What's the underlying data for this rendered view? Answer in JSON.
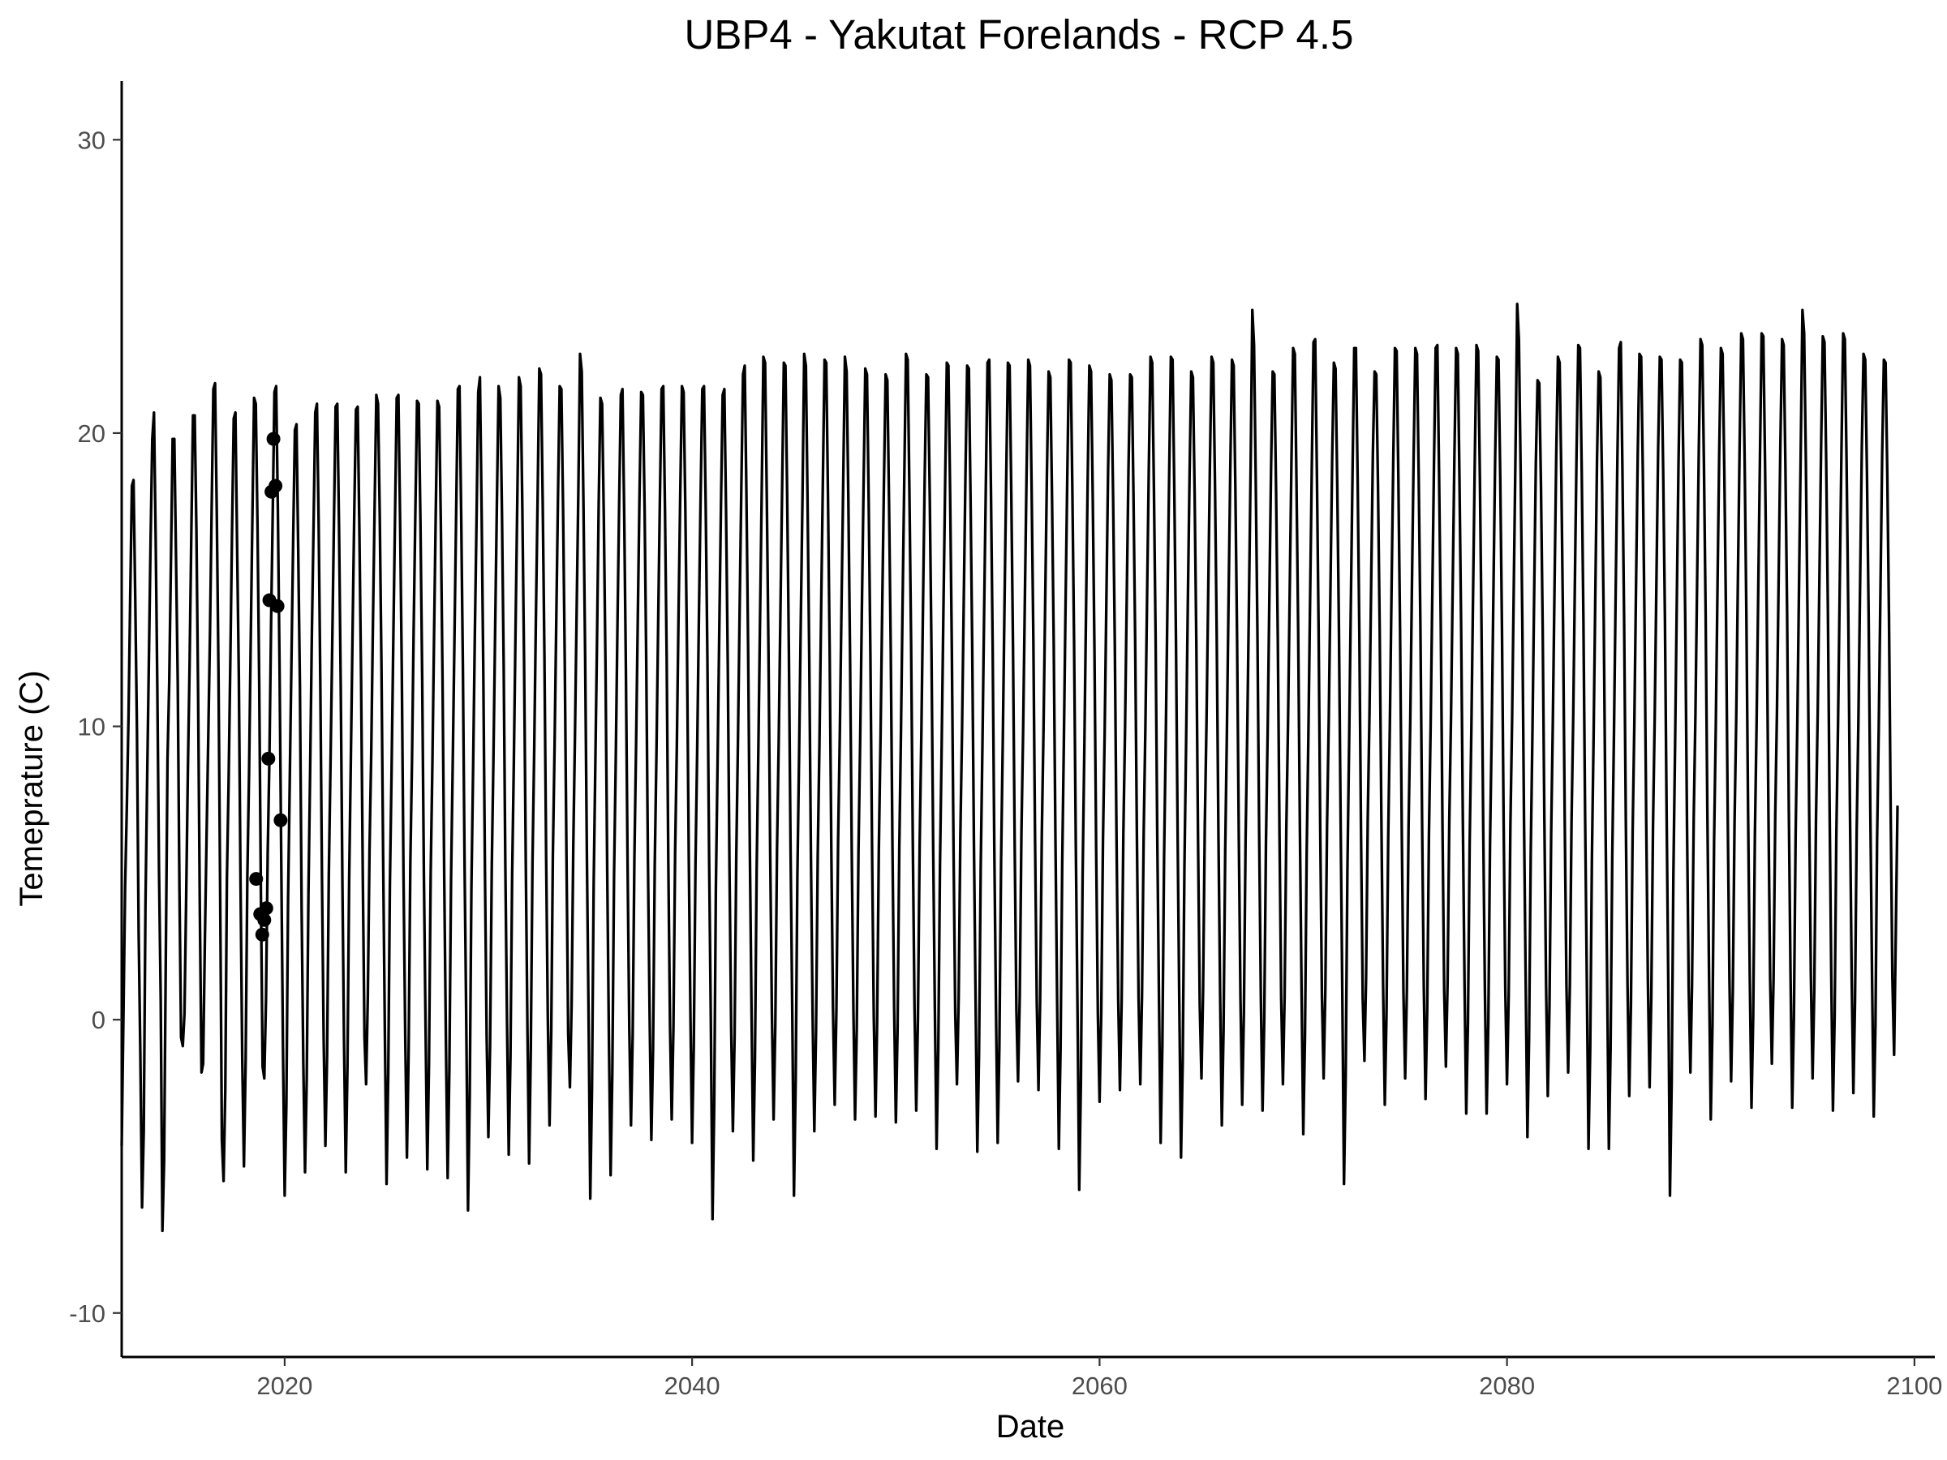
{
  "chart_data": {
    "type": "line",
    "title": "UBP4 - Yakutat Forelands - RCP 4.5",
    "xlabel": "Date",
    "ylabel": "Temeprature (C)",
    "x_range": [
      2012,
      2101
    ],
    "ylim": [
      -11.5,
      32
    ],
    "x_ticks": [
      2020,
      2040,
      2060,
      2080,
      2100
    ],
    "y_ticks": [
      -10,
      0,
      10,
      20,
      30
    ],
    "grid": false,
    "legend": "none",
    "colors": {
      "line": "#000000",
      "points": "#000000",
      "axis": "#000000",
      "tick_text": "#4d4d4d"
    },
    "series": [
      {
        "type": "line",
        "description_note": "",
        "values_note": "",
        "x_start": 2012,
        "step": 0.0833333333,
        "yearly_annual_cycle_approx": true,
        "y": [
          -4.3,
          0.0,
          4.5,
          7.2,
          10.3,
          14.4,
          18.2,
          18.4,
          14.4,
          9.9,
          3.0,
          -1.2,
          -6.4,
          -3.8,
          3.9,
          8.2,
          12.2,
          16.3,
          19.8,
          20.7,
          16.4,
          11.4,
          5.1,
          0.7,
          -7.2,
          -4.8,
          2.2,
          8.9,
          11.5,
          15.6,
          19.8,
          19.8,
          15.7,
          11.5,
          4.4,
          -0.6,
          -0.9,
          0.2,
          4.2,
          8.5,
          12.1,
          16.5,
          20.6,
          20.6,
          16.7,
          11.1,
          3.8,
          -1.8,
          -1.5,
          2.6,
          6.2,
          9.6,
          13.1,
          17.4,
          21.5,
          21.7,
          17.3,
          11.9,
          4.3,
          -4.1,
          -5.5,
          -2.4,
          4.8,
          8.1,
          12.2,
          16.6,
          20.5,
          20.7,
          16.1,
          11.7,
          4.6,
          -1.3,
          -5.0,
          -1.4,
          4.9,
          8.4,
          12.8,
          17.1,
          21.2,
          21.0,
          16.9,
          11.5,
          4.3,
          -1.6,
          -2.0,
          0.7,
          5.7,
          8.9,
          13.6,
          17.3,
          21.4,
          21.6,
          17.4,
          12.0,
          5.4,
          -0.9,
          -6.0,
          -2.9,
          4.1,
          8.2,
          12.3,
          16.4,
          20.1,
          20.3,
          16.0,
          11.4,
          3.8,
          -1.5,
          -5.2,
          -2.0,
          4.3,
          8.5,
          13.1,
          16.8,
          20.7,
          21.0,
          16.9,
          11.6,
          4.8,
          -0.7,
          -4.3,
          -1.2,
          4.9,
          8.7,
          12.7,
          16.9,
          20.9,
          21.0,
          16.8,
          11.4,
          4.6,
          -0.8,
          -5.2,
          -1.6,
          4.8,
          8.9,
          13.2,
          17.3,
          20.8,
          20.9,
          16.7,
          11.6,
          4.9,
          -0.6,
          -2.2,
          0.8,
          5.8,
          9.1,
          13.5,
          17.5,
          21.3,
          21.0,
          17.2,
          12.1,
          5.5,
          -0.4,
          -5.6,
          -1.8,
          4.6,
          8.5,
          12.9,
          17.1,
          21.2,
          21.3,
          17.0,
          11.8,
          4.9,
          -0.5,
          -4.7,
          -1.1,
          5.3,
          8.9,
          13.3,
          17.3,
          21.1,
          21.0,
          16.9,
          11.7,
          5.0,
          -0.3,
          -5.1,
          -1.5,
          5.0,
          8.7,
          13.2,
          17.2,
          21.1,
          20.9,
          16.9,
          11.6,
          4.8,
          -0.8,
          -5.4,
          -1.7,
          4.8,
          8.8,
          13.0,
          17.3,
          21.5,
          21.6,
          17.2,
          12.0,
          5.2,
          -0.2,
          -6.5,
          -2.6,
          4.5,
          8.6,
          13.1,
          17.0,
          21.4,
          21.9,
          17.3,
          12.0,
          5.0,
          -0.6,
          -4.0,
          -0.9,
          5.2,
          9.0,
          13.4,
          17.6,
          21.6,
          21.2,
          17.2,
          12.0,
          5.3,
          -0.1,
          -4.6,
          -1.3,
          4.9,
          8.8,
          13.3,
          17.6,
          21.9,
          21.6,
          17.4,
          12.2,
          5.4,
          -0.4,
          -4.9,
          -1.0,
          5.4,
          9.2,
          13.7,
          17.8,
          22.2,
          22.0,
          17.6,
          12.4,
          5.6,
          0.0,
          -3.6,
          -0.4,
          5.6,
          9.3,
          13.6,
          17.8,
          21.6,
          21.5,
          17.4,
          12.1,
          5.5,
          -0.5,
          -2.3,
          0.5,
          6.0,
          9.6,
          13.9,
          18.0,
          22.7,
          22.1,
          17.6,
          12.4,
          5.7,
          0.2,
          -6.1,
          -2.4,
          4.6,
          8.8,
          13.1,
          17.6,
          21.2,
          21.0,
          17.1,
          12.0,
          5.1,
          -0.7,
          -5.3,
          -1.8,
          4.9,
          8.8,
          13.4,
          17.6,
          21.3,
          21.5,
          17.3,
          12.0,
          5.3,
          -0.3,
          -3.6,
          -0.5,
          5.5,
          9.4,
          13.7,
          17.9,
          21.4,
          21.3,
          17.4,
          12.2,
          5.4,
          0.1,
          -4.1,
          -1.0,
          5.3,
          9.1,
          13.5,
          17.7,
          21.5,
          21.6,
          17.4,
          12.3,
          5.4,
          -0.2,
          -3.4,
          -0.3,
          5.7,
          9.3,
          13.8,
          17.9,
          21.6,
          21.4,
          17.4,
          12.4,
          5.6,
          0.1,
          -4.2,
          -0.9,
          5.3,
          9.2,
          13.7,
          17.8,
          21.5,
          21.6,
          17.5,
          12.3,
          5.5,
          0.0,
          -6.8,
          -2.9,
          4.4,
          8.7,
          13.2,
          17.5,
          21.3,
          21.5,
          17.3,
          12.1,
          5.2,
          -0.3,
          -3.8,
          -0.6,
          5.6,
          9.4,
          13.9,
          18.1,
          22.0,
          22.3,
          17.9,
          12.6,
          5.8,
          0.3,
          -4.8,
          -1.4,
          5.1,
          9.2,
          13.7,
          17.9,
          22.6,
          22.4,
          17.8,
          12.5,
          5.7,
          0.2,
          -3.4,
          -0.2,
          5.8,
          9.5,
          13.9,
          18.1,
          22.4,
          22.3,
          17.9,
          12.6,
          5.8,
          0.3,
          -6.0,
          -2.1,
          4.9,
          9.0,
          13.6,
          17.8,
          22.7,
          22.3,
          17.8,
          12.4,
          5.6,
          0.1,
          -3.8,
          -0.4,
          5.6,
          9.4,
          14.0,
          18.3,
          22.5,
          22.4,
          17.9,
          12.6,
          5.9,
          0.4,
          -2.9,
          0.3,
          6.1,
          9.7,
          14.1,
          18.3,
          22.6,
          22.1,
          17.8,
          12.5,
          5.8,
          0.3,
          -3.4,
          -0.3,
          5.7,
          9.5,
          14.0,
          18.2,
          22.2,
          22.0,
          17.7,
          12.5,
          5.7,
          0.1,
          -3.3,
          -0.1,
          5.8,
          9.6,
          14.1,
          18.3,
          22.0,
          21.8,
          17.6,
          12.6,
          5.9,
          0.4,
          -3.5,
          -0.3,
          5.8,
          9.6,
          14.2,
          18.5,
          22.7,
          22.5,
          18.0,
          12.8,
          6.0,
          0.4,
          -3.1,
          0.0,
          5.9,
          9.7,
          14.2,
          18.4,
          22.0,
          21.9,
          17.8,
          12.6,
          5.9,
          0.3,
          -4.4,
          -1.0,
          5.3,
          9.4,
          13.9,
          18.2,
          22.4,
          22.3,
          17.9,
          12.6,
          5.8,
          0.2,
          -2.2,
          0.7,
          6.3,
          9.9,
          14.3,
          18.6,
          22.3,
          22.2,
          17.9,
          12.8,
          6.1,
          0.6,
          -4.5,
          -1.2,
          5.2,
          9.3,
          13.9,
          18.2,
          22.4,
          22.5,
          18.1,
          12.8,
          6.0,
          0.4,
          -4.2,
          -0.9,
          5.4,
          9.5,
          14.1,
          18.4,
          22.4,
          22.3,
          17.9,
          12.7,
          5.9,
          0.3,
          -2.1,
          0.8,
          6.4,
          9.9,
          14.3,
          18.6,
          22.5,
          22.3,
          18.0,
          12.9,
          6.1,
          0.6,
          -2.4,
          0.6,
          6.3,
          9.9,
          14.3,
          18.6,
          22.1,
          21.9,
          17.8,
          12.8,
          6.2,
          0.6,
          -4.4,
          -1.0,
          5.4,
          9.5,
          14.2,
          18.5,
          22.5,
          22.4,
          18.0,
          12.8,
          6.0,
          0.4,
          -5.8,
          -2.1,
          4.9,
          9.2,
          13.9,
          18.3,
          22.3,
          22.1,
          17.8,
          12.6,
          5.8,
          0.2,
          -2.8,
          0.3,
          6.1,
          9.8,
          14.3,
          18.7,
          22.0,
          21.8,
          17.8,
          12.8,
          6.2,
          0.7,
          -2.4,
          0.6,
          6.3,
          9.9,
          14.4,
          18.7,
          22.0,
          21.9,
          17.9,
          12.9,
          6.3,
          0.7,
          -2.2,
          0.8,
          6.4,
          10.0,
          14.5,
          18.8,
          22.6,
          22.4,
          18.1,
          13.0,
          6.3,
          0.8,
          -4.2,
          -0.9,
          5.5,
          9.6,
          14.2,
          18.6,
          22.6,
          22.5,
          18.1,
          12.9,
          6.1,
          0.5,
          -4.7,
          -1.4,
          5.2,
          9.5,
          14.2,
          18.5,
          22.1,
          21.9,
          17.9,
          12.8,
          6.1,
          0.5,
          -2.0,
          1.0,
          6.6,
          10.1,
          14.5,
          18.9,
          22.6,
          22.4,
          18.2,
          13.1,
          6.4,
          0.9,
          -3.6,
          -0.4,
          5.8,
          9.7,
          14.3,
          18.7,
          22.5,
          22.3,
          18.1,
          13.0,
          6.3,
          0.7,
          -2.9,
          0.2,
          6.2,
          9.9,
          14.4,
          18.8,
          24.2,
          23.0,
          18.4,
          13.2,
          6.4,
          0.8,
          -3.1,
          0.0,
          6.0,
          9.8,
          14.4,
          18.8,
          22.1,
          22.0,
          18.0,
          13.0,
          6.3,
          0.7,
          -2.2,
          0.8,
          6.5,
          10.1,
          14.6,
          19.0,
          22.9,
          22.7,
          18.4,
          13.3,
          6.6,
          1.0,
          -3.9,
          -0.6,
          5.7,
          9.7,
          14.3,
          18.8,
          23.1,
          23.2,
          18.6,
          13.3,
          6.5,
          0.8,
          -2.0,
          1.0,
          6.6,
          10.2,
          14.7,
          19.1,
          22.4,
          22.2,
          18.2,
          13.2,
          6.6,
          1.0,
          -5.6,
          -1.9,
          5.1,
          9.4,
          14.1,
          18.6,
          22.9,
          22.9,
          18.5,
          13.2,
          6.3,
          0.7,
          -1.4,
          1.4,
          6.9,
          10.4,
          14.9,
          19.3,
          22.1,
          22.0,
          18.2,
          13.3,
          6.8,
          1.2,
          -2.9,
          0.2,
          6.2,
          10.0,
          14.6,
          19.0,
          22.9,
          22.8,
          18.5,
          13.3,
          6.5,
          0.9,
          -2.0,
          1.0,
          6.6,
          10.2,
          14.7,
          19.1,
          22.9,
          22.7,
          18.5,
          13.4,
          6.7,
          1.1,
          -2.7,
          0.4,
          6.3,
          10.0,
          14.6,
          19.1,
          22.9,
          23.0,
          18.6,
          13.4,
          6.6,
          1.0,
          -1.6,
          1.3,
          6.8,
          10.3,
          14.8,
          19.2,
          22.9,
          22.7,
          18.5,
          13.4,
          6.8,
          1.2,
          -3.2,
          -0.1,
          6.0,
          9.9,
          14.5,
          19.0,
          23.0,
          22.8,
          18.5,
          13.4,
          6.6,
          1.0,
          -3.2,
          -0.1,
          6.0,
          9.9,
          14.6,
          19.1,
          22.6,
          22.5,
          18.5,
          13.4,
          6.7,
          1.1,
          -2.2,
          0.8,
          6.6,
          10.2,
          14.8,
          19.3,
          24.4,
          23.2,
          18.8,
          13.6,
          6.8,
          1.2,
          -4.0,
          -0.7,
          5.7,
          9.8,
          14.5,
          19.0,
          21.8,
          21.7,
          18.2,
          13.4,
          6.8,
          1.2,
          -2.6,
          0.5,
          6.4,
          10.1,
          14.7,
          19.2,
          22.6,
          22.4,
          18.5,
          13.5,
          6.8,
          1.2,
          -1.8,
          1.2,
          6.8,
          10.4,
          14.9,
          19.4,
          23.0,
          22.9,
          18.8,
          13.7,
          7.0,
          1.4,
          -4.4,
          -1.0,
          5.5,
          9.7,
          14.5,
          19.1,
          22.1,
          21.9,
          18.3,
          13.5,
          6.9,
          1.3,
          -4.4,
          -1.0,
          5.6,
          9.8,
          14.6,
          19.1,
          22.9,
          23.1,
          18.8,
          13.6,
          6.8,
          1.2,
          -2.6,
          0.5,
          6.4,
          10.1,
          14.8,
          19.3,
          22.7,
          22.6,
          18.6,
          13.6,
          6.9,
          1.3,
          -2.3,
          0.8,
          6.6,
          10.3,
          14.9,
          19.4,
          22.6,
          22.5,
          18.6,
          13.7,
          7.0,
          1.4,
          -6.0,
          -2.2,
          4.9,
          9.3,
          14.2,
          18.9,
          22.5,
          22.4,
          18.5,
          13.5,
          6.7,
          1.1,
          -1.8,
          1.2,
          6.9,
          10.4,
          15.0,
          19.5,
          23.2,
          23.0,
          18.9,
          13.8,
          7.1,
          1.5,
          -3.4,
          -0.2,
          6.1,
          10.0,
          14.7,
          19.3,
          22.9,
          22.7,
          18.7,
          13.7,
          7.0,
          1.4,
          -2.1,
          1.0,
          6.7,
          10.3,
          14.9,
          19.4,
          23.4,
          23.2,
          19.0,
          13.8,
          7.1,
          1.5,
          -3.0,
          0.1,
          6.3,
          10.1,
          14.8,
          19.3,
          23.4,
          23.3,
          19.0,
          13.8,
          7.0,
          1.4,
          -1.5,
          1.4,
          7.0,
          10.5,
          15.1,
          19.6,
          23.2,
          23.0,
          18.9,
          13.9,
          7.2,
          1.6,
          -3.0,
          0.1,
          6.3,
          10.1,
          14.8,
          19.4,
          24.2,
          23.4,
          19.1,
          13.9,
          7.1,
          1.5,
          -2.0,
          1.0,
          6.8,
          10.4,
          15.0,
          19.5,
          23.3,
          23.1,
          19.0,
          13.9,
          7.2,
          1.6,
          -3.1,
          0.1,
          6.3,
          10.1,
          14.8,
          19.4,
          23.4,
          23.2,
          19.0,
          13.9,
          7.1,
          1.5,
          -2.5,
          0.6,
          6.5,
          10.2,
          14.9,
          19.5,
          22.7,
          22.5,
          18.7,
          13.8,
          7.1,
          1.5,
          -3.3,
          -0.2,
          6.1,
          10.0,
          14.7,
          19.3,
          22.5,
          22.4,
          18.6,
          13.7,
          7.0,
          1.4,
          -1.2,
          3.0,
          7.3
        ]
      }
    ],
    "observations": {
      "type": "scatter",
      "points": [
        {
          "x": 2018.6,
          "y": 4.8
        },
        {
          "x": 2018.8,
          "y": 3.6
        },
        {
          "x": 2018.9,
          "y": 2.9
        },
        {
          "x": 2019.0,
          "y": 3.4
        },
        {
          "x": 2019.1,
          "y": 3.8
        },
        {
          "x": 2019.2,
          "y": 8.9
        },
        {
          "x": 2019.25,
          "y": 14.3
        },
        {
          "x": 2019.35,
          "y": 18.0
        },
        {
          "x": 2019.45,
          "y": 19.8
        },
        {
          "x": 2019.55,
          "y": 18.2
        },
        {
          "x": 2019.65,
          "y": 14.1
        },
        {
          "x": 2019.8,
          "y": 6.8
        }
      ]
    }
  }
}
